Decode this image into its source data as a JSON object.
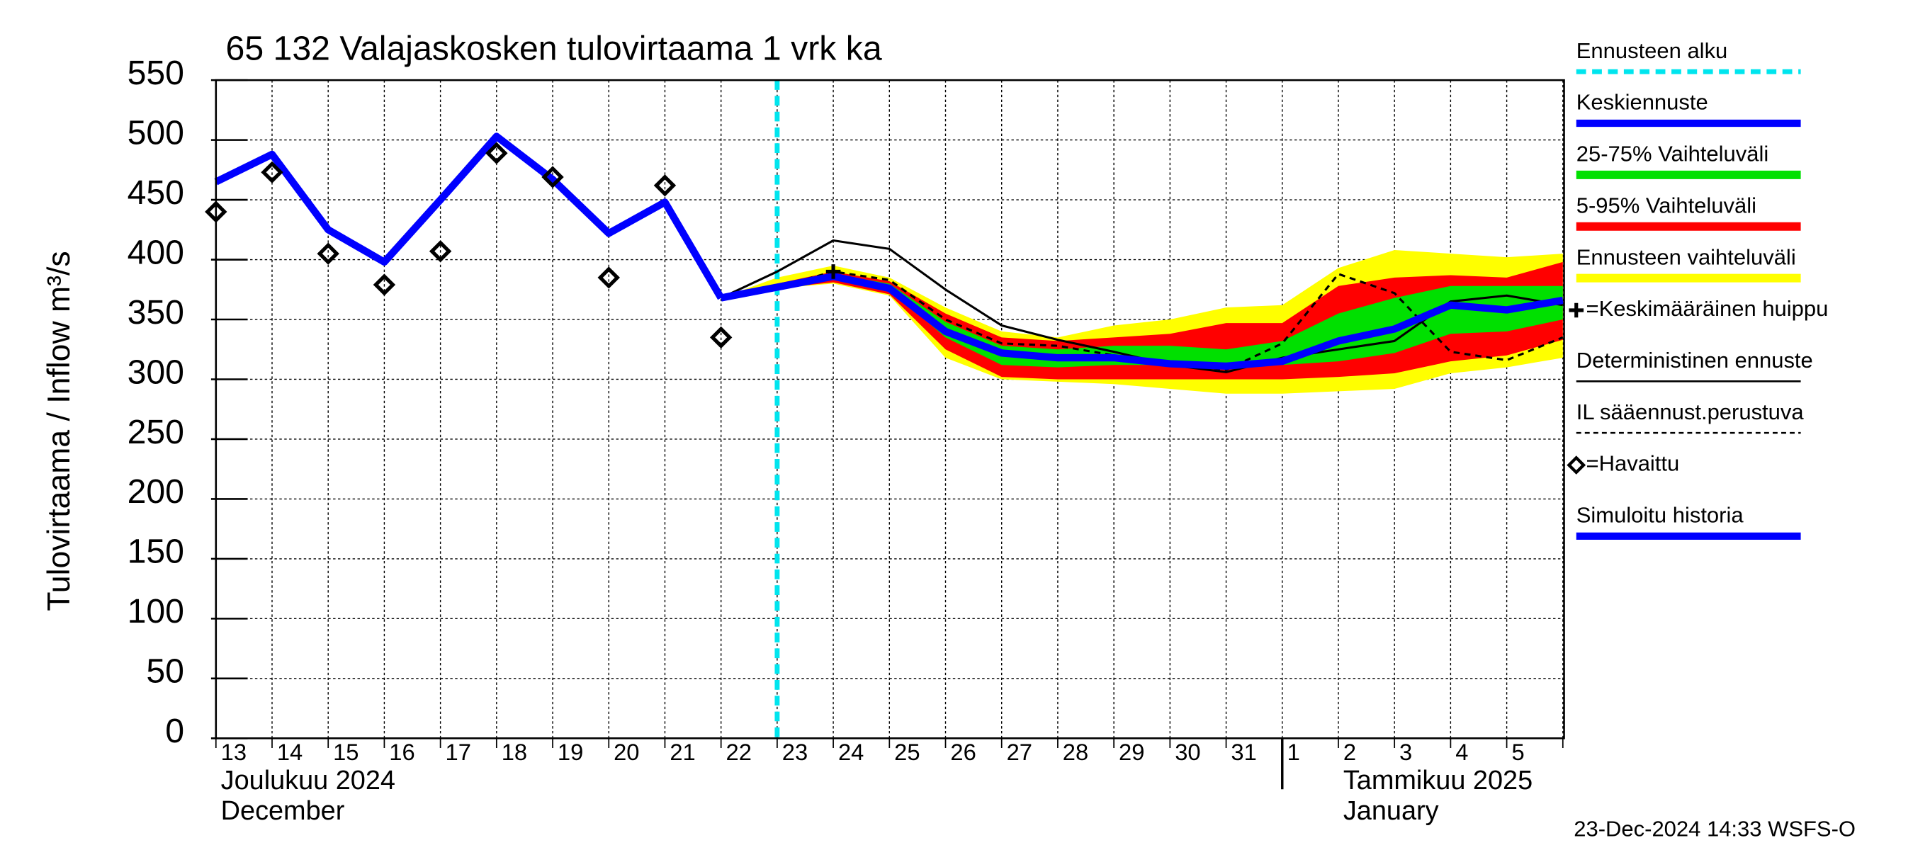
{
  "chart_data": {
    "type": "line",
    "title": "65 132 Valajaskosken tulovirtaama 1 vrk ka",
    "y_label": "Tulovirtaama / Inflow   m³/s",
    "timestamp": "23-Dec-2024 14:33 WSFS-O",
    "month_labels": [
      [
        "Joulukuu  2024",
        "December"
      ],
      [
        "Tammikuu  2025",
        "January"
      ]
    ],
    "categories": [
      "13",
      "14",
      "15",
      "16",
      "17",
      "18",
      "19",
      "20",
      "21",
      "22",
      "23",
      "24",
      "25",
      "26",
      "27",
      "28",
      "29",
      "30",
      "31",
      "1",
      "2",
      "3",
      "4",
      "5",
      null
    ],
    "ylim": [
      0,
      550
    ],
    "yticks": [
      0,
      50,
      100,
      150,
      200,
      250,
      300,
      350,
      400,
      450,
      500,
      550
    ],
    "grid": true,
    "series": [
      {
        "name": "Ennusteen alku",
        "kind": "vline",
        "color": "#00e5ee",
        "x": 10
      },
      {
        "name": "Keskiennuste",
        "kind": "line-thick",
        "color": "#0000ff",
        "values": [
          null,
          null,
          null,
          null,
          null,
          null,
          null,
          null,
          null,
          368,
          377,
          386,
          376,
          340,
          322,
          318,
          318,
          313,
          311,
          315,
          332,
          342,
          362,
          358,
          366
        ]
      },
      {
        "name": "25-75% Vaihteluväli",
        "kind": "band",
        "color": "#00e000",
        "values": [
          null,
          null,
          null,
          null,
          null,
          null,
          null,
          null,
          null,
          368,
          378,
          388,
          380,
          348,
          328,
          325,
          328,
          328,
          325,
          332,
          355,
          368,
          378,
          378,
          378
        ],
        "low": [
          null,
          null,
          null,
          null,
          null,
          null,
          null,
          null,
          null,
          368,
          377,
          384,
          375,
          335,
          312,
          310,
          312,
          312,
          310,
          312,
          315,
          322,
          338,
          340,
          350
        ]
      },
      {
        "name": "5-95% Vaihteluväli",
        "kind": "band",
        "color": "#ff0000",
        "values": [
          null,
          null,
          null,
          null,
          null,
          null,
          null,
          null,
          null,
          368,
          380,
          390,
          382,
          355,
          335,
          332,
          335,
          338,
          347,
          347,
          378,
          385,
          387,
          385,
          398
        ],
        "low": [
          null,
          null,
          null,
          null,
          null,
          null,
          null,
          null,
          null,
          368,
          376,
          381,
          371,
          325,
          302,
          300,
          300,
          300,
          300,
          300,
          302,
          305,
          315,
          320,
          333
        ]
      },
      {
        "name": "Ennusteen vaihteluväli",
        "kind": "band",
        "color": "#ffff00",
        "values": [
          null,
          null,
          null,
          null,
          null,
          null,
          null,
          null,
          null,
          368,
          385,
          395,
          385,
          360,
          340,
          335,
          345,
          350,
          360,
          362,
          393,
          408,
          405,
          402,
          405
        ],
        "low": [
          null,
          null,
          null,
          null,
          null,
          null,
          null,
          null,
          null,
          368,
          376,
          380,
          370,
          318,
          300,
          298,
          296,
          292,
          288,
          288,
          290,
          292,
          305,
          310,
          318
        ]
      },
      {
        "name": "=Keskimääräinen huippu",
        "kind": "marker-plus",
        "color": "#000000",
        "values": [
          null,
          null,
          null,
          null,
          null,
          null,
          null,
          null,
          null,
          null,
          null,
          390,
          null,
          null,
          null,
          null,
          null,
          null,
          null,
          null,
          null,
          null,
          null,
          null,
          null
        ]
      },
      {
        "name": "Deterministinen ennuste",
        "kind": "line-thin",
        "color": "#000000",
        "values": [
          null,
          null,
          null,
          null,
          null,
          null,
          null,
          null,
          null,
          368,
          390,
          416,
          409,
          375,
          345,
          333,
          323,
          312,
          306,
          318,
          325,
          332,
          365,
          370,
          362
        ]
      },
      {
        "name": "IL sääennust.perustuva",
        "kind": "line-dashed",
        "color": "#000000",
        "values": [
          null,
          null,
          null,
          null,
          null,
          null,
          null,
          null,
          null,
          368,
          377,
          390,
          383,
          350,
          330,
          328,
          320,
          313,
          308,
          330,
          388,
          372,
          323,
          316,
          335
        ]
      },
      {
        "name": "=Havaittu",
        "kind": "marker-diamond",
        "color": "#000000",
        "values": [
          440,
          473,
          405,
          379,
          407,
          489,
          469,
          385,
          462,
          335,
          null,
          null,
          null,
          null,
          null,
          null,
          null,
          null,
          null,
          null,
          null,
          null,
          null,
          null,
          null
        ]
      },
      {
        "name": "Simuloitu historia",
        "kind": "line-thick",
        "color": "#0000ff",
        "values": [
          465,
          488,
          425,
          398,
          450,
          503,
          467,
          422,
          448,
          368,
          null,
          null,
          null,
          null,
          null,
          null,
          null,
          null,
          null,
          null,
          null,
          null,
          null,
          null,
          null
        ]
      }
    ]
  }
}
